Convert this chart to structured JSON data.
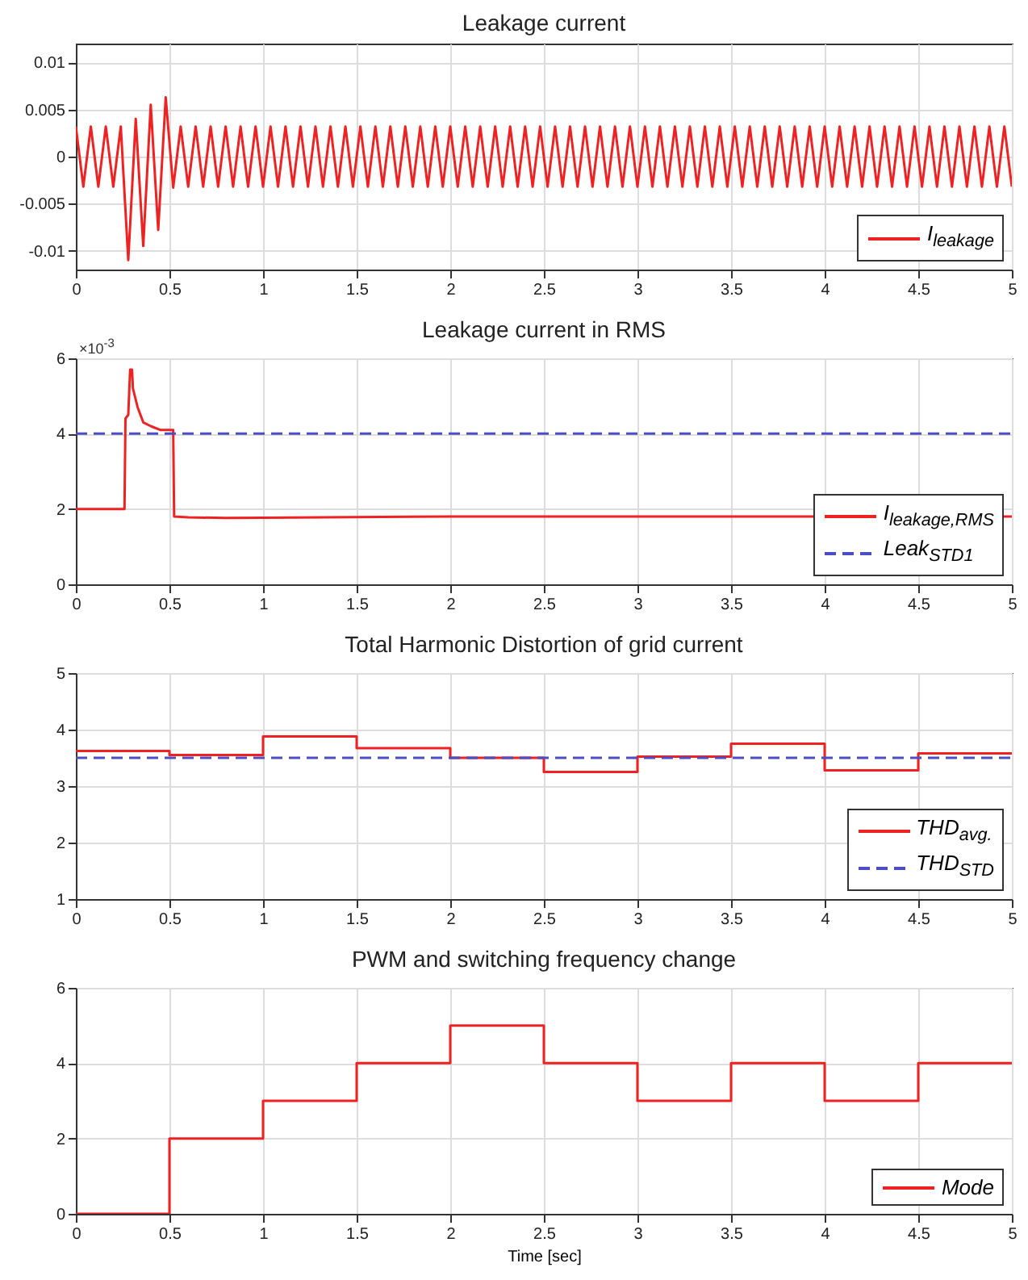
{
  "chart_data": [
    {
      "type": "line",
      "title": "Leakage current",
      "xlim": [
        0,
        5
      ],
      "ylim": [
        -0.012,
        0.012
      ],
      "xticks": [
        0,
        0.5,
        1,
        1.5,
        2,
        2.5,
        3,
        3.5,
        4,
        4.5,
        5
      ],
      "yticks": [
        -0.01,
        -0.005,
        0,
        0.005,
        0.01
      ],
      "grid": true,
      "legend": "bottom right",
      "series": [
        {
          "name": "I$_{leakage}$",
          "color": "#ee2222",
          "x": [
            0,
            0.04,
            0.08,
            0.12,
            0.16,
            0.2,
            0.24,
            0.28,
            0.32,
            0.36,
            0.4,
            0.44,
            0.48,
            0.52,
            0.56,
            0.6,
            0.64,
            0.68,
            0.72,
            0.76,
            0.8,
            0.84,
            0.88,
            0.92,
            0.96,
            1,
            1.04,
            1.08,
            1.12,
            1.16,
            1.2,
            1.24,
            1.28,
            1.32,
            1.36,
            1.4,
            1.44,
            1.48,
            1.52,
            1.56,
            1.6,
            1.64,
            1.68,
            1.72,
            1.76,
            1.8,
            1.84,
            1.88,
            1.92,
            1.96,
            2,
            2.04,
            2.08,
            2.12,
            2.16,
            2.2,
            2.24,
            2.28,
            2.32,
            2.36,
            2.4,
            2.44,
            2.48,
            2.52,
            2.56,
            2.6,
            2.64,
            2.68,
            2.72,
            2.76,
            2.8,
            2.84,
            2.88,
            2.92,
            2.96,
            3,
            3.04,
            3.08,
            3.12,
            3.16,
            3.2,
            3.24,
            3.28,
            3.32,
            3.36,
            3.4,
            3.44,
            3.48,
            3.52,
            3.56,
            3.6,
            3.64,
            3.68,
            3.72,
            3.76,
            3.8,
            3.84,
            3.88,
            3.92,
            3.96,
            4,
            4.04,
            4.08,
            4.12,
            4.16,
            4.2,
            4.24,
            4.28,
            4.32,
            4.36,
            4.4,
            4.44,
            4.48,
            4.52,
            4.56,
            4.6,
            4.64,
            4.68,
            4.72,
            4.76,
            4.8,
            4.84,
            4.88,
            4.92,
            4.96,
            5
          ],
          "values": [
            0.0032,
            -0.0032,
            0.0032,
            -0.0032,
            0.0032,
            -0.0032,
            0.0032,
            -0.011,
            0.004,
            -0.0095,
            0.0055,
            -0.0078,
            0.0063,
            -0.0033,
            0.0032,
            -0.0032,
            0.0032,
            -0.0032,
            0.0032,
            -0.0032,
            0.0032,
            -0.0032,
            0.0032,
            -0.0032,
            0.0032,
            -0.0032,
            0.0032,
            -0.0032,
            0.0032,
            -0.0032,
            0.0032,
            -0.0032,
            0.0032,
            -0.0032,
            0.0032,
            -0.0032,
            0.0032,
            -0.0032,
            0.0032,
            -0.0032,
            0.0032,
            -0.0032,
            0.0032,
            -0.0032,
            0.0032,
            -0.0032,
            0.0032,
            -0.0032,
            0.0032,
            -0.0032,
            0.0032,
            -0.0032,
            0.0032,
            -0.0032,
            0.0032,
            -0.0032,
            0.0032,
            -0.0032,
            0.0032,
            -0.0032,
            0.0032,
            -0.0032,
            0.0032,
            -0.0032,
            0.0032,
            -0.0032,
            0.0032,
            -0.0032,
            0.0032,
            -0.0032,
            0.0032,
            -0.0032,
            0.0032,
            -0.0032,
            0.0032,
            -0.0032,
            0.0032,
            -0.0032,
            0.0032,
            -0.0032,
            0.0032,
            -0.0032,
            0.0032,
            -0.0032,
            0.0032,
            -0.0032,
            0.0032,
            -0.0032,
            0.0032,
            -0.0032,
            0.0032,
            -0.0032,
            0.0032,
            -0.0032,
            0.0032,
            -0.0032,
            0.0032,
            -0.0032,
            0.0032,
            -0.0032,
            0.0032,
            -0.0032,
            0.0032,
            -0.0032,
            0.0032,
            -0.0032,
            0.0032,
            -0.0032,
            0.0032,
            -0.0032,
            0.0032,
            -0.0032,
            0.0032,
            -0.0032,
            0.0032,
            -0.0032,
            0.0032,
            -0.0032,
            0.0032,
            -0.0032,
            0.0032,
            -0.0032,
            0.0032,
            -0.0032,
            0.0032,
            -0.0032
          ]
        }
      ]
    },
    {
      "type": "line",
      "title": "Leakage current in RMS",
      "annotations": [
        "×10$^{-3}$"
      ],
      "xlim": [
        0,
        5
      ],
      "ylim": [
        0,
        6
      ],
      "xticks": [
        0,
        0.5,
        1,
        1.5,
        2,
        2.5,
        3,
        3.5,
        4,
        4.5,
        5
      ],
      "yticks": [
        0,
        2,
        4,
        6
      ],
      "grid": true,
      "legend": "bottom right",
      "series": [
        {
          "name": "I$_{leakage,RMS}$",
          "color": "#ee2222",
          "x": [
            0,
            0.26,
            0.265,
            0.28,
            0.29,
            0.3,
            0.305,
            0.31,
            0.33,
            0.36,
            0.4,
            0.45,
            0.52,
            0.525,
            0.6,
            0.8,
            1,
            2,
            3,
            4,
            5
          ],
          "values": [
            2,
            2,
            4.4,
            4.5,
            5.7,
            5.7,
            5.2,
            5.1,
            4.7,
            4.3,
            4.2,
            4.1,
            4.1,
            1.8,
            1.78,
            1.76,
            1.77,
            1.8,
            1.8,
            1.8,
            1.8
          ]
        },
        {
          "name": "Leak$_{STD1}$",
          "color": "#4d4dc4",
          "line_style": "dashed",
          "x": [
            0,
            5
          ],
          "values": [
            4,
            4
          ]
        }
      ]
    },
    {
      "type": "line",
      "title": "Total Harmonic Distortion of grid current",
      "xlim": [
        0,
        5
      ],
      "ylim": [
        1,
        5
      ],
      "xticks": [
        0,
        0.5,
        1,
        1.5,
        2,
        2.5,
        3,
        3.5,
        4,
        4.5,
        5
      ],
      "yticks": [
        1,
        2,
        3,
        4,
        5
      ],
      "grid": true,
      "legend": "bottom right",
      "series": [
        {
          "name": "THD$_{avg.}$",
          "type": "step",
          "color": "#ee2222",
          "x": [
            0,
            0.5,
            1,
            1.5,
            2,
            2.5,
            3,
            3.5,
            4,
            4.5,
            5
          ],
          "values": [
            3.62,
            3.55,
            3.88,
            3.67,
            3.5,
            3.25,
            3.52,
            3.75,
            3.28,
            3.58,
            3.58
          ]
        },
        {
          "name": "THD$_{STD}$",
          "color": "#4d4dc4",
          "line_style": "dashed",
          "x": [
            0,
            5
          ],
          "values": [
            3.5,
            3.5
          ]
        }
      ]
    },
    {
      "type": "step",
      "title": "PWM and switching frequency change",
      "xlabel": "Time [sec]",
      "xlim": [
        0,
        5
      ],
      "ylim": [
        0,
        6
      ],
      "xticks": [
        0,
        0.5,
        1,
        1.5,
        2,
        2.5,
        3,
        3.5,
        4,
        4.5,
        5
      ],
      "yticks": [
        0,
        2,
        4,
        6
      ],
      "grid": true,
      "legend": "bottom right",
      "series": [
        {
          "name": "Mode",
          "color": "#ee2222",
          "x": [
            0,
            0.5,
            1,
            1.5,
            2,
            2.5,
            3,
            3.5,
            4,
            4.5,
            5
          ],
          "values": [
            0,
            2,
            3,
            4,
            5,
            4,
            3,
            4,
            3,
            4,
            4
          ]
        }
      ]
    }
  ]
}
